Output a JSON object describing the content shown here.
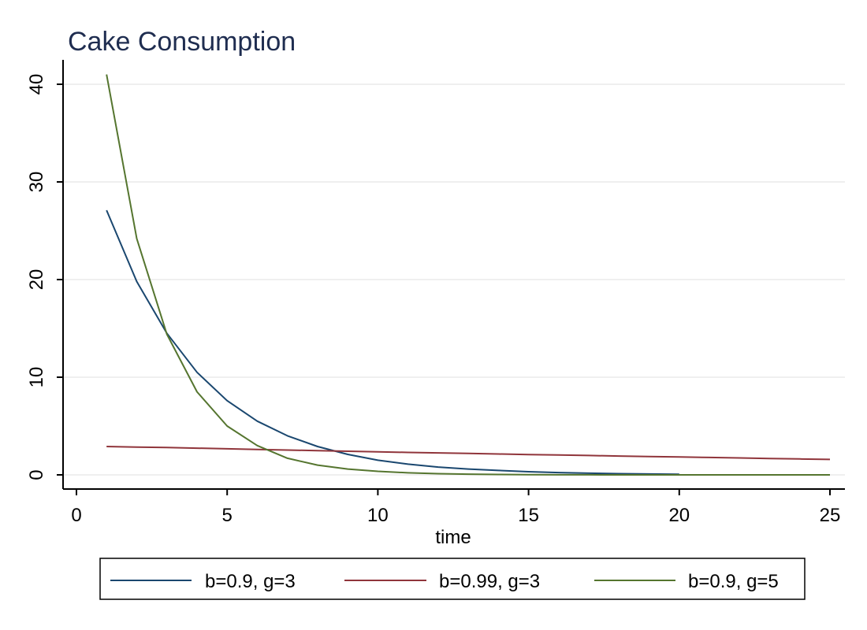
{
  "chart_data": {
    "type": "line",
    "title": "Cake Consumption",
    "xlabel": "time",
    "ylabel": "",
    "xlim": [
      0,
      25
    ],
    "ylim": [
      0,
      40
    ],
    "xticks": [
      0,
      5,
      10,
      15,
      20,
      25
    ],
    "yticks": [
      0,
      10,
      20,
      30,
      40
    ],
    "grid": true,
    "legend_position": "bottom",
    "colors": {
      "title": "#1f2d50",
      "axis": "#000000",
      "grid": "#eaeaea"
    },
    "series": [
      {
        "name": "b=0.9, g=3",
        "color": "#1a476f",
        "x": [
          1,
          2,
          3,
          4,
          5,
          6,
          7,
          8,
          9,
          10,
          11,
          12,
          13,
          14,
          15,
          16,
          17,
          18,
          19,
          20
        ],
        "y": [
          27.1,
          19.8,
          14.5,
          10.5,
          7.6,
          5.5,
          4.0,
          2.9,
          2.1,
          1.5,
          1.1,
          0.8,
          0.6,
          0.45,
          0.32,
          0.23,
          0.17,
          0.12,
          0.09,
          0.06
        ]
      },
      {
        "name": "b=0.99, g=3",
        "color": "#90353b",
        "x": [
          1,
          2,
          3,
          4,
          5,
          6,
          7,
          8,
          9,
          10,
          11,
          12,
          13,
          14,
          15,
          16,
          17,
          18,
          19,
          20,
          21,
          22,
          23,
          24,
          25
        ],
        "y": [
          2.9,
          2.85,
          2.8,
          2.73,
          2.67,
          2.6,
          2.54,
          2.48,
          2.42,
          2.36,
          2.3,
          2.25,
          2.19,
          2.14,
          2.08,
          2.03,
          1.98,
          1.93,
          1.88,
          1.83,
          1.78,
          1.73,
          1.68,
          1.63,
          1.58
        ]
      },
      {
        "name": "b=0.9, g=5",
        "color": "#55752f",
        "x": [
          1,
          2,
          3,
          4,
          5,
          6,
          7,
          8,
          9,
          10,
          11,
          12,
          13,
          14,
          15,
          16,
          17,
          18,
          19,
          20,
          21,
          22,
          23,
          24,
          25
        ],
        "y": [
          41.0,
          24.2,
          14.4,
          8.5,
          5.0,
          3.0,
          1.7,
          1.0,
          0.6,
          0.36,
          0.21,
          0.12,
          0.07,
          0.04,
          0.02,
          0.01,
          0.01,
          0.0,
          0.0,
          0.0,
          0.0,
          0.0,
          0.0,
          0.0,
          0.0
        ]
      }
    ]
  }
}
